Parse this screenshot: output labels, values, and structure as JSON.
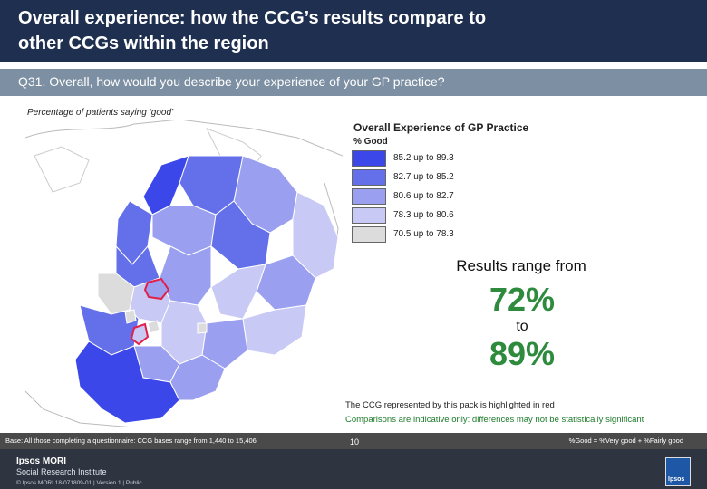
{
  "header": {
    "title_line1": "Overall experience: how the CCG’s results compare to",
    "title_line2": "other CCGs within the region"
  },
  "question": {
    "text": "Q31. Overall, how would you describe your experience of your GP practice?"
  },
  "subtitle": "Percentage of patients saying ‘good’",
  "legend": {
    "title": "Overall Experience of GP Practice",
    "subtitle": "% Good",
    "items": [
      {
        "label": "85.2 up to 89.3",
        "color": "#3b47e8"
      },
      {
        "label": "82.7 up to 85.2",
        "color": "#6470ea"
      },
      {
        "label": "80.6 up to 82.7",
        "color": "#9a9ff0"
      },
      {
        "label": "78.3 up to 80.6",
        "color": "#c8c9f4"
      },
      {
        "label": "70.5 up to 78.3",
        "color": "#dcdcdc"
      }
    ]
  },
  "results": {
    "range_label": "Results range from",
    "min": "72%",
    "to": "to",
    "max": "89%"
  },
  "notes": {
    "highlight": "The CCG represented by this pack is highlighted in red",
    "comparison": "Comparisons are indicative only: differences may not be statistically significant"
  },
  "base": {
    "left": "Base: All those completing a questionnaire: CCG bases range from 1,440 to 15,406",
    "right": "%Good = %Very good + %Fairly good"
  },
  "footer": {
    "logo_line1": "Ipsos MORI",
    "logo_line2": "Social Research Institute",
    "small": "© Ipsos MORI    18-071809-01 | Version 1 | Public",
    "page_number": "10",
    "corner_logo": "Ipsos"
  },
  "colors": {
    "header_bg": "#1f2f50",
    "question_bg": "#7d8fa3",
    "accent_green": "#2e8b3e",
    "highlight_red": "#e0204a"
  }
}
